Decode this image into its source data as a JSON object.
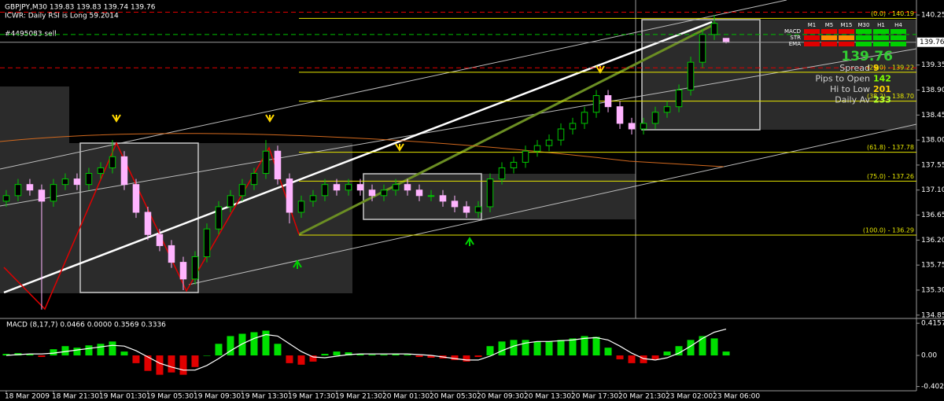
{
  "chart_data": {
    "type": "candlestick",
    "title": "GBPJPY,M30  139.83 139.83 139.74 139.76",
    "subtitle": "ICWR: Daily RSI is Long 59.2014",
    "order_note": "#4495083 sell",
    "xlim": [
      -0.53,
      77.13
    ],
    "xticks": [
      {
        "value": 0,
        "label": "18 Mar 2009"
      },
      {
        "value": 4,
        "label": "18 Mar 21:30"
      },
      {
        "value": 8,
        "label": "19 Mar 01:30"
      },
      {
        "value": 12,
        "label": "19 Mar 05:30"
      },
      {
        "value": 16,
        "label": "19 Mar 09:30"
      },
      {
        "value": 20,
        "label": "19 Mar 13:30"
      },
      {
        "value": 24,
        "label": "19 Mar 17:30"
      },
      {
        "value": 28,
        "label": "19 Mar 21:30"
      },
      {
        "value": 32,
        "label": "20 Mar 01:30"
      },
      {
        "value": 36,
        "label": "20 Mar 05:30"
      },
      {
        "value": 40,
        "label": "20 Mar 09:30"
      },
      {
        "value": 44,
        "label": "20 Mar 13:30"
      },
      {
        "value": 48,
        "label": "20 Mar 17:30"
      },
      {
        "value": 52,
        "label": "20 Mar 21:30"
      },
      {
        "value": 56,
        "label": "23 Mar 02:00"
      },
      {
        "value": 60,
        "label": "23 Mar 06:00"
      }
    ],
    "ylim": [
      134.79,
      140.52
    ],
    "yticks": [
      {
        "value": 140.25,
        "label": "140.25"
      },
      139.35,
      {
        "value": 138.9,
        "label": "138.90"
      },
      138.45,
      {
        "value": 138.0,
        "label": "138.00"
      },
      137.55,
      {
        "value": 137.1,
        "label": "137.10"
      },
      136.65,
      {
        "value": 136.2,
        "label": "136.20"
      },
      135.75,
      {
        "value": 135.3,
        "label": "135.30"
      },
      134.85
    ],
    "up_color": "#00c800",
    "down_color": "#ffb4ff",
    "open": [
      136.9,
      137.0,
      137.2,
      137.1,
      136.9,
      137.2,
      137.3,
      137.2,
      137.4,
      137.5,
      137.7,
      137.2,
      136.7,
      136.3,
      136.1,
      135.8,
      135.5,
      135.9,
      136.4,
      136.8,
      137.0,
      137.2,
      137.4,
      137.8,
      137.3,
      136.7,
      136.9,
      137.0,
      137.2,
      137.1,
      137.2,
      137.1,
      137.0,
      137.1,
      137.2,
      137.1,
      137.0,
      137.0,
      136.9,
      136.8,
      136.7,
      136.8,
      137.3,
      137.5,
      137.6,
      137.8,
      137.9,
      138.0,
      138.2,
      138.3,
      138.5,
      138.8,
      138.6,
      138.3,
      138.2,
      138.3,
      138.5,
      138.6,
      138.9,
      139.4,
      139.9,
      139.83
    ],
    "high": [
      137.1,
      137.3,
      137.3,
      137.2,
      137.3,
      137.4,
      137.4,
      137.5,
      137.6,
      138.0,
      137.8,
      137.3,
      136.8,
      136.4,
      136.2,
      135.9,
      136.0,
      136.5,
      136.9,
      137.1,
      137.3,
      137.5,
      138.0,
      137.9,
      137.4,
      137.0,
      137.1,
      137.3,
      137.3,
      137.3,
      137.3,
      137.2,
      137.2,
      137.3,
      137.3,
      137.2,
      137.1,
      137.1,
      137.0,
      136.9,
      136.9,
      137.4,
      137.6,
      137.7,
      137.9,
      138.0,
      138.1,
      138.3,
      138.4,
      138.6,
      138.9,
      138.9,
      138.7,
      138.4,
      138.4,
      138.6,
      138.7,
      139.0,
      139.5,
      140.0,
      140.25,
      139.83
    ],
    "low": [
      136.8,
      136.9,
      137.0,
      134.95,
      136.8,
      137.1,
      137.1,
      137.1,
      137.3,
      137.4,
      137.1,
      136.6,
      136.2,
      136.0,
      135.7,
      135.3,
      135.4,
      135.8,
      136.3,
      136.7,
      136.9,
      137.1,
      137.3,
      137.2,
      136.5,
      136.6,
      136.8,
      136.9,
      137.0,
      137.0,
      137.0,
      136.9,
      136.9,
      137.0,
      137.0,
      136.9,
      136.9,
      136.8,
      136.7,
      136.6,
      136.6,
      136.7,
      137.2,
      137.4,
      137.5,
      137.7,
      137.8,
      137.9,
      138.1,
      138.2,
      138.4,
      138.5,
      138.2,
      138.1,
      138.1,
      138.2,
      138.4,
      138.5,
      138.8,
      139.3,
      139.8,
      139.74
    ],
    "close": [
      137.0,
      137.2,
      137.1,
      136.9,
      137.2,
      137.3,
      137.2,
      137.4,
      137.5,
      137.7,
      137.2,
      136.7,
      136.3,
      136.1,
      135.8,
      135.5,
      135.9,
      136.4,
      136.8,
      137.0,
      137.2,
      137.4,
      137.8,
      137.3,
      136.7,
      136.9,
      137.0,
      137.2,
      137.1,
      137.2,
      137.1,
      137.0,
      137.1,
      137.2,
      137.1,
      137.0,
      137.0,
      136.9,
      136.8,
      136.7,
      136.8,
      137.3,
      137.5,
      137.6,
      137.8,
      137.9,
      138.0,
      138.2,
      138.3,
      138.5,
      138.8,
      138.6,
      138.3,
      138.2,
      138.3,
      138.5,
      138.6,
      138.9,
      139.4,
      139.9,
      140.1,
      139.76
    ],
    "last_price": 139.76,
    "levels": [
      {
        "value": 140.3,
        "color": "#e00000"
      },
      {
        "value": 139.3,
        "color": "#e00000"
      },
      {
        "value": 139.9,
        "color": "#00c000"
      }
    ],
    "fib_levels": [
      {
        "value": 140.19,
        "label": "(0.0) - 140.19"
      },
      {
        "value": 139.22,
        "label": "(25.0) - 139.22"
      },
      {
        "value": 138.7,
        "label": "(38.2) - 138.70"
      },
      {
        "value": 137.78,
        "label": "(61.8) - 137.78"
      },
      {
        "value": 137.26,
        "label": "(75.0) - 137.26"
      },
      {
        "value": 136.29,
        "label": "(100.0) - 136.29"
      }
    ],
    "fib_color": "#e6e600",
    "signals": {
      "timeframes": [
        "M1",
        "M5",
        "M15",
        "M30",
        "H1",
        "H4"
      ],
      "rows": [
        {
          "name": "MACD",
          "colors": [
            "#e00000",
            "#e00000",
            "#e00000",
            "#00d000",
            "#00d000",
            "#00d000"
          ]
        },
        {
          "name": "STR",
          "colors": [
            "#e00000",
            "#ff8c00",
            "#ff8c00",
            "#00d000",
            "#00d000",
            "#00d000"
          ]
        },
        {
          "name": "EMA",
          "colors": [
            "#e00000",
            "#e00000",
            "#e00000",
            "#00d000",
            "#00d000",
            "#00d000"
          ]
        }
      ]
    },
    "stats": [
      {
        "label": "Spread",
        "value": 9,
        "color": "#ffd700"
      },
      {
        "label": "Pips to Open",
        "value": 142,
        "color": "#7cfc00"
      },
      {
        "label": "Hi to Low",
        "value": 201,
        "color": "#ffd700"
      },
      {
        "label": "Daily Av",
        "value": 233,
        "color": "#adff2f"
      }
    ],
    "macd": {
      "title": "MACD (8,17,7) 0.0466 0.0000 0.3569 0.3336",
      "ylim": [
        -0.457,
        0.478
      ],
      "yticks": [
        0.4157,
        {
          "value": 0,
          "label": "0.00"
        },
        -0.402
      ],
      "up_color": "#00e000",
      "down_color": "#e00000",
      "line_color": "#ffffff",
      "histogram": [
        0.02,
        0.03,
        0.02,
        -0.02,
        0.08,
        0.12,
        0.1,
        0.13,
        0.15,
        0.18,
        0.05,
        -0.1,
        -0.2,
        -0.25,
        -0.22,
        -0.25,
        -0.15,
        0.0,
        0.15,
        0.25,
        0.28,
        0.3,
        0.32,
        0.15,
        -0.1,
        -0.12,
        -0.08,
        0.02,
        0.05,
        0.04,
        0.02,
        0.01,
        0.01,
        0.02,
        0.01,
        -0.02,
        -0.03,
        -0.04,
        -0.06,
        -0.08,
        -0.02,
        0.12,
        0.18,
        0.2,
        0.2,
        0.18,
        0.18,
        0.2,
        0.22,
        0.25,
        0.24,
        0.1,
        -0.05,
        -0.1,
        -0.1,
        -0.05,
        0.05,
        0.12,
        0.2,
        0.25,
        0.22,
        0.05
      ],
      "signal": [
        0.0,
        0.01,
        0.02,
        0.02,
        0.03,
        0.05,
        0.07,
        0.09,
        0.11,
        0.13,
        0.12,
        0.06,
        -0.02,
        -0.1,
        -0.15,
        -0.19,
        -0.19,
        -0.13,
        -0.04,
        0.06,
        0.15,
        0.22,
        0.27,
        0.25,
        0.15,
        0.05,
        -0.02,
        -0.03,
        -0.01,
        0.01,
        0.02,
        0.02,
        0.02,
        0.02,
        0.02,
        0.01,
        0.0,
        -0.02,
        -0.04,
        -0.06,
        -0.06,
        -0.01,
        0.06,
        0.12,
        0.16,
        0.18,
        0.18,
        0.19,
        0.2,
        0.22,
        0.23,
        0.2,
        0.12,
        0.03,
        -0.04,
        -0.06,
        -0.03,
        0.03,
        0.12,
        0.22,
        0.3,
        0.34
      ]
    }
  }
}
